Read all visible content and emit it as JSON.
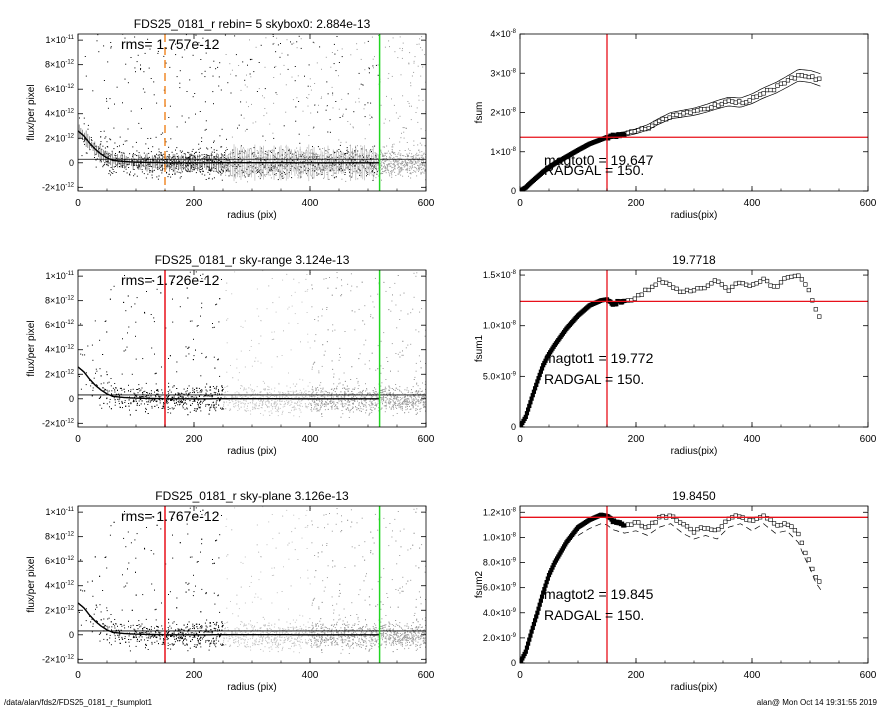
{
  "footer": {
    "path": "/data/alan/fds2/FDS25_0181_r_fsumplot1",
    "stamp": "alan@  Mon Oct 14 19:31:55 2019"
  },
  "colors": {
    "scatter": "#000000",
    "scatter_gray": "#9a9a9a",
    "scatter_lightgray": "#c4c4c4",
    "red_line": "#e8101a",
    "green_line": "#22d622",
    "orange_dash": "#f08a2a"
  },
  "chart_data": [
    {
      "type": "scatter",
      "title": "FDS25_0181_r rebin= 5    skybox0:  2.884e-13",
      "annotation": "rms= 1.757e-12",
      "xlabel": "radius (pix)",
      "ylabel": "flux/per pixel",
      "xlim": [
        0,
        600
      ],
      "ylim": [
        -2.3e-12,
        1.05e-11
      ],
      "xticks": [
        0,
        200,
        400,
        600
      ],
      "xtick_labels": [
        "0",
        "200",
        "400",
        "600"
      ],
      "yticks": [
        -2e-12,
        0,
        2e-12,
        4e-12,
        6e-12,
        8e-12,
        1e-11
      ],
      "ytick_labels": [
        [
          "-2×10",
          "-12"
        ],
        [
          "0",
          ""
        ],
        [
          "2×10",
          "-12"
        ],
        [
          "4×10",
          "-12"
        ],
        [
          "6×10",
          "-12"
        ],
        [
          "8×10",
          "-12"
        ],
        [
          "1×10",
          "-11"
        ]
      ],
      "vlines": [
        {
          "x": 150,
          "color": "orange_dash",
          "dashed": true
        },
        {
          "x": 520,
          "color": "green_line",
          "dashed": false
        }
      ],
      "hline": 2.884e-13,
      "profile": [
        [
          0,
          2.6e-12
        ],
        [
          10,
          2.2e-12
        ],
        [
          20,
          1.6e-12
        ],
        [
          30,
          1.1e-12
        ],
        [
          40,
          7e-13
        ],
        [
          50,
          4e-13
        ],
        [
          60,
          2e-13
        ],
        [
          80,
          1e-13
        ],
        [
          100,
          5e-14
        ],
        [
          150,
          0
        ],
        [
          200,
          0
        ],
        [
          300,
          1e-14
        ],
        [
          400,
          0
        ],
        [
          520,
          0
        ]
      ],
      "error_bars": true
    },
    {
      "type": "line",
      "title": "",
      "annotations": [
        "magtot0 = 19.647",
        "RADGAL =    150."
      ],
      "xlabel": "radius(pix)",
      "ylabel": "fsum",
      "xlim": [
        0,
        600
      ],
      "ylim": [
        0,
        4e-08
      ],
      "xticks": [
        0,
        200,
        400,
        600
      ],
      "xtick_labels": [
        "0",
        "200",
        "400",
        "600"
      ],
      "yticks": [
        0,
        1e-08,
        2e-08,
        3e-08,
        4e-08
      ],
      "ytick_labels": [
        [
          "0",
          ""
        ],
        [
          "1×10",
          "-8"
        ],
        [
          "2×10",
          "-8"
        ],
        [
          "3×10",
          "-8"
        ],
        [
          "4×10",
          "-8"
        ]
      ],
      "vline": 150,
      "hline": 1.37e-08,
      "x": [
        0,
        10,
        20,
        30,
        40,
        50,
        60,
        80,
        100,
        120,
        150,
        180,
        200,
        220,
        240,
        260,
        280,
        300,
        320,
        340,
        360,
        380,
        400,
        420,
        440,
        460,
        480,
        500,
        520
      ],
      "y": [
        0,
        9e-10,
        2.3e-09,
        3.6e-09,
        4.9e-09,
        6e-09,
        7e-09,
        8.7e-09,
        1.04e-08,
        1.2e-08,
        1.37e-08,
        1.45e-08,
        1.52e-08,
        1.62e-08,
        1.78e-08,
        1.92e-08,
        1.97e-08,
        2.02e-08,
        2.1e-08,
        2.2e-08,
        2.28e-08,
        2.25e-08,
        2.35e-08,
        2.5e-08,
        2.62e-08,
        2.78e-08,
        2.95e-08,
        2.92e-08,
        2.82e-08
      ],
      "envelope": 1.6e-09
    },
    {
      "type": "scatter",
      "title": "FDS25_0181_r sky-range  3.124e-13",
      "annotation": "rms= 1.726e-12",
      "xlabel": "radius (pix)",
      "ylabel": "flux/per pixel",
      "xlim": [
        0,
        600
      ],
      "ylim": [
        -2.3e-12,
        1.05e-11
      ],
      "xticks": [
        0,
        200,
        400,
        600
      ],
      "xtick_labels": [
        "0",
        "200",
        "400",
        "600"
      ],
      "yticks": [
        -2e-12,
        0,
        2e-12,
        4e-12,
        6e-12,
        8e-12,
        1e-11
      ],
      "ytick_labels": [
        [
          "-2×10",
          "-12"
        ],
        [
          "0",
          ""
        ],
        [
          "2×10",
          "-12"
        ],
        [
          "4×10",
          "-12"
        ],
        [
          "6×10",
          "-12"
        ],
        [
          "8×10",
          "-12"
        ],
        [
          "1×10",
          "-11"
        ]
      ],
      "vlines": [
        {
          "x": 150,
          "color": "red_line",
          "dashed": false
        },
        {
          "x": 520,
          "color": "green_line",
          "dashed": false
        }
      ],
      "hline": 3.124e-13,
      "profile": [
        [
          0,
          2.6e-12
        ],
        [
          10,
          2.2e-12
        ],
        [
          20,
          1.6e-12
        ],
        [
          30,
          1.1e-12
        ],
        [
          40,
          7e-13
        ],
        [
          50,
          4e-13
        ],
        [
          60,
          2e-13
        ],
        [
          80,
          1e-13
        ],
        [
          100,
          5e-14
        ],
        [
          150,
          0
        ],
        [
          200,
          0
        ],
        [
          300,
          1e-14
        ],
        [
          400,
          0
        ],
        [
          520,
          0
        ]
      ],
      "bands": [
        [
          250,
          400,
          "scatter_lightgray"
        ],
        [
          400,
          600,
          "scatter_gray"
        ]
      ],
      "error_bars": false
    },
    {
      "type": "line",
      "title": "19.7718",
      "annotations": [
        "magtot1 = 19.772",
        "RADGAL =    150."
      ],
      "xlabel": "radius(pix)",
      "ylabel": "fsum1",
      "xlim": [
        0,
        600
      ],
      "ylim": [
        0,
        1.55e-08
      ],
      "xticks": [
        0,
        200,
        400,
        600
      ],
      "xtick_labels": [
        "0",
        "200",
        "400",
        "600"
      ],
      "yticks": [
        0,
        5e-09,
        1e-08,
        1.5e-08
      ],
      "ytick_labels": [
        [
          "0",
          ""
        ],
        [
          "5.0×10",
          "-9"
        ],
        [
          "1.0×10",
          "-8"
        ],
        [
          "1.5×10",
          "-8"
        ]
      ],
      "vline": 150,
      "hline": 1.24e-08,
      "x": [
        0,
        10,
        20,
        30,
        40,
        50,
        60,
        80,
        100,
        120,
        140,
        150,
        160,
        180,
        200,
        220,
        240,
        260,
        280,
        300,
        320,
        340,
        360,
        380,
        400,
        420,
        440,
        460,
        480,
        490,
        500,
        510,
        520
      ],
      "y": [
        0,
        1e-09,
        2.8e-09,
        4.5e-09,
        6.1e-09,
        7.2e-09,
        8.1e-09,
        9.7e-09,
        1.1e-08,
        1.2e-08,
        1.25e-08,
        1.26e-08,
        1.22e-08,
        1.24e-08,
        1.28e-08,
        1.36e-08,
        1.44e-08,
        1.4e-08,
        1.33e-08,
        1.35e-08,
        1.39e-08,
        1.45e-08,
        1.36e-08,
        1.43e-08,
        1.4e-08,
        1.45e-08,
        1.38e-08,
        1.47e-08,
        1.49e-08,
        1.42e-08,
        1.32e-08,
        1.15e-08,
        1.05e-08
      ],
      "envelope": 0
    },
    {
      "type": "scatter",
      "title": "FDS25_0181_r sky-plane  3.126e-13",
      "annotation": "rms= 1.767e-12",
      "xlabel": "radius (pix)",
      "ylabel": "flux/per pixel",
      "xlim": [
        0,
        600
      ],
      "ylim": [
        -2.3e-12,
        1.05e-11
      ],
      "xticks": [
        0,
        200,
        400,
        600
      ],
      "xtick_labels": [
        "0",
        "200",
        "400",
        "600"
      ],
      "yticks": [
        -2e-12,
        0,
        2e-12,
        4e-12,
        6e-12,
        8e-12,
        1e-11
      ],
      "ytick_labels": [
        [
          "-2×10",
          "-12"
        ],
        [
          "0",
          ""
        ],
        [
          "2×10",
          "-12"
        ],
        [
          "4×10",
          "-12"
        ],
        [
          "6×10",
          "-12"
        ],
        [
          "8×10",
          "-12"
        ],
        [
          "1×10",
          "-11"
        ]
      ],
      "vlines": [
        {
          "x": 150,
          "color": "red_line",
          "dashed": false
        },
        {
          "x": 520,
          "color": "green_line",
          "dashed": false
        }
      ],
      "hline": 3.126e-13,
      "profile": [
        [
          0,
          2.6e-12
        ],
        [
          10,
          2.2e-12
        ],
        [
          20,
          1.6e-12
        ],
        [
          30,
          1.1e-12
        ],
        [
          40,
          7e-13
        ],
        [
          50,
          4e-13
        ],
        [
          60,
          2e-13
        ],
        [
          80,
          1e-13
        ],
        [
          100,
          5e-14
        ],
        [
          150,
          0
        ],
        [
          200,
          0
        ],
        [
          300,
          1e-14
        ],
        [
          400,
          0
        ],
        [
          520,
          0
        ]
      ],
      "bands": [
        [
          250,
          400,
          "scatter_lightgray"
        ],
        [
          400,
          600,
          "scatter_gray"
        ]
      ],
      "error_bars": false
    },
    {
      "type": "line",
      "title": "19.8450",
      "annotations": [
        "magtot2 = 19.845",
        "RADGAL =    150."
      ],
      "xlabel": "radius(pix)",
      "ylabel": "fsum2",
      "xlim": [
        0,
        600
      ],
      "ylim": [
        0,
        1.25e-08
      ],
      "xticks": [
        0,
        200,
        400,
        600
      ],
      "xtick_labels": [
        "0",
        "200",
        "400",
        "600"
      ],
      "yticks": [
        0,
        2e-09,
        4e-09,
        6e-09,
        8e-09,
        1e-08,
        1.2e-08
      ],
      "ytick_labels": [
        [
          "0",
          ""
        ],
        [
          "2.0×10",
          "-9"
        ],
        [
          "4.0×10",
          "-9"
        ],
        [
          "6.0×10",
          "-9"
        ],
        [
          "8.0×10",
          "-9"
        ],
        [
          "1.0×10",
          "-8"
        ],
        [
          "1.2×10",
          "-8"
        ]
      ],
      "vline": 150,
      "hline": 1.16e-08,
      "x": [
        0,
        10,
        20,
        30,
        40,
        50,
        60,
        80,
        100,
        120,
        140,
        150,
        160,
        180,
        200,
        220,
        240,
        260,
        280,
        300,
        320,
        340,
        360,
        380,
        400,
        420,
        440,
        460,
        480,
        490,
        500,
        510,
        520
      ],
      "y": [
        0,
        9e-10,
        2.5e-09,
        4e-09,
        5.6e-09,
        7e-09,
        8e-09,
        9.6e-09,
        1.08e-08,
        1.14e-08,
        1.18e-08,
        1.17e-08,
        1.13e-08,
        1.1e-08,
        1.12e-08,
        1.08e-08,
        1.15e-08,
        1.18e-08,
        1.1e-08,
        1.05e-08,
        1.08e-08,
        1.05e-08,
        1.15e-08,
        1.18e-08,
        1.12e-08,
        1.18e-08,
        1.1e-08,
        1.12e-08,
        1.02e-08,
        9e-09,
        8e-09,
        6.8e-09,
        6.1e-09
      ],
      "envelope": 0,
      "dashed_lower": true
    }
  ]
}
